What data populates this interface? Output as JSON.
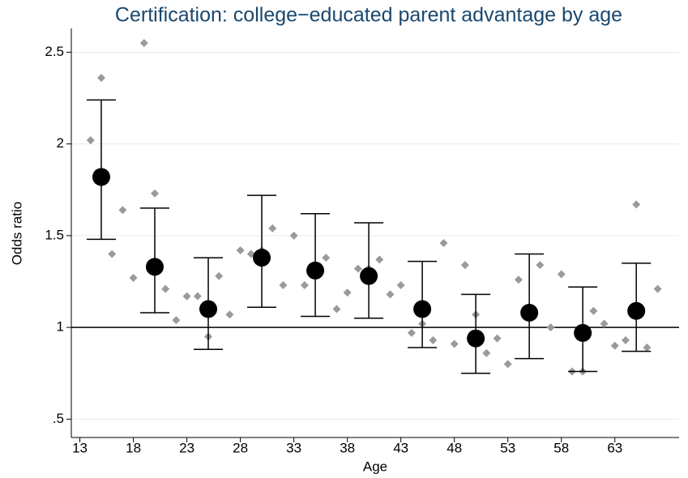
{
  "chart_data": {
    "type": "scatter",
    "title": "Certification: college−educated parent advantage by age",
    "x_label": "Age",
    "y_label": "Odds ratio",
    "xlim": [
      12.2,
      69
    ],
    "xticks": [
      13,
      18,
      23,
      28,
      33,
      38,
      43,
      48,
      53,
      58,
      63
    ],
    "ylim": [
      0.4,
      2.63
    ],
    "yticks": [
      {
        "value": 0.5,
        "label": ".5"
      },
      1,
      1.5,
      2,
      2.5
    ],
    "grid": true,
    "reference_line": 1,
    "series": [
      {
        "marker": "diamond",
        "color": "#9a9a9a",
        "x": [
          14,
          15,
          16,
          17,
          18,
          19,
          20,
          21,
          22,
          23,
          24,
          25,
          26,
          27,
          28,
          29,
          30,
          31,
          32,
          33,
          34,
          35,
          36,
          37,
          38,
          39,
          40,
          41,
          42,
          43,
          44,
          45,
          46,
          47,
          48,
          49,
          50,
          51,
          52,
          53,
          54,
          55,
          56,
          57,
          58,
          59,
          60,
          61,
          62,
          63,
          64,
          65,
          66,
          67
        ],
        "values": [
          2.02,
          2.36,
          1.4,
          1.64,
          1.27,
          2.55,
          1.73,
          1.21,
          1.04,
          1.17,
          1.17,
          0.95,
          1.28,
          1.07,
          1.42,
          1.4,
          1.42,
          1.54,
          1.23,
          1.5,
          1.23,
          1.33,
          1.38,
          1.1,
          1.19,
          1.32,
          1.32,
          1.37,
          1.18,
          1.23,
          0.97,
          1.02,
          0.93,
          1.46,
          0.91,
          1.34,
          1.07,
          0.86,
          0.94,
          0.8,
          1.26,
          1.1,
          1.34,
          1.0,
          1.29,
          0.76,
          0.76,
          1.09,
          1.02,
          0.9,
          0.93,
          1.67,
          0.89,
          1.21
        ]
      },
      {
        "marker": "circle",
        "color": "#000000",
        "x": [
          15,
          20,
          25,
          30,
          35,
          40,
          45,
          50,
          55,
          60,
          65
        ],
        "values": [
          1.82,
          1.33,
          1.1,
          1.38,
          1.31,
          1.28,
          1.1,
          0.94,
          1.08,
          0.97,
          1.09
        ],
        "lower": [
          1.48,
          1.08,
          0.88,
          1.11,
          1.06,
          1.05,
          0.89,
          0.75,
          0.83,
          0.76,
          0.87
        ],
        "upper": [
          2.24,
          1.65,
          1.38,
          1.72,
          1.62,
          1.57,
          1.36,
          1.18,
          1.4,
          1.22,
          1.35
        ]
      }
    ]
  }
}
